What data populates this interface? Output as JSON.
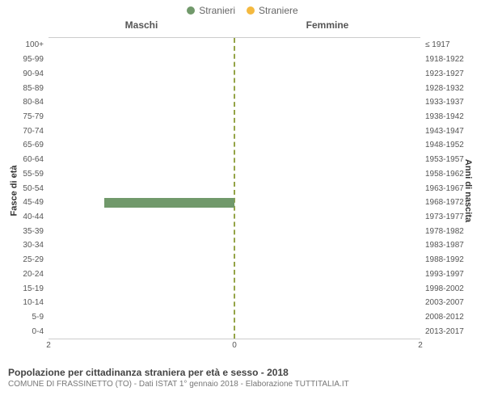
{
  "legend": {
    "male": {
      "label": "Stranieri",
      "color": "#71996b"
    },
    "female": {
      "label": "Straniere",
      "color": "#f4b93f"
    }
  },
  "chart": {
    "type": "population-pyramid",
    "left_header": "Maschi",
    "right_header": "Femmine",
    "y_left_title": "Fasce di età",
    "y_right_title": "Anni di nascita",
    "x_max": 2,
    "x_ticks_left": [
      "2"
    ],
    "x_ticks_center": [
      "0"
    ],
    "x_ticks_right": [
      "2"
    ],
    "center_line_color": "#94a346",
    "border_color": "#cccccc",
    "background_color": "#ffffff",
    "male_bar_color": "#71996b",
    "female_bar_color": "#f4b93f",
    "rows": [
      {
        "age": "100+",
        "year": "≤ 1917",
        "m": 0,
        "f": 0
      },
      {
        "age": "95-99",
        "year": "1918-1922",
        "m": 0,
        "f": 0
      },
      {
        "age": "90-94",
        "year": "1923-1927",
        "m": 0,
        "f": 0
      },
      {
        "age": "85-89",
        "year": "1928-1932",
        "m": 0,
        "f": 0
      },
      {
        "age": "80-84",
        "year": "1933-1937",
        "m": 0,
        "f": 0
      },
      {
        "age": "75-79",
        "year": "1938-1942",
        "m": 0,
        "f": 0
      },
      {
        "age": "70-74",
        "year": "1943-1947",
        "m": 0,
        "f": 0
      },
      {
        "age": "65-69",
        "year": "1948-1952",
        "m": 0,
        "f": 0
      },
      {
        "age": "60-64",
        "year": "1953-1957",
        "m": 0,
        "f": 0
      },
      {
        "age": "55-59",
        "year": "1958-1962",
        "m": 0,
        "f": 0
      },
      {
        "age": "50-54",
        "year": "1963-1967",
        "m": 0,
        "f": 0
      },
      {
        "age": "45-49",
        "year": "1968-1972",
        "m": 1.4,
        "f": 0
      },
      {
        "age": "40-44",
        "year": "1973-1977",
        "m": 0,
        "f": 0
      },
      {
        "age": "35-39",
        "year": "1978-1982",
        "m": 0,
        "f": 0
      },
      {
        "age": "30-34",
        "year": "1983-1987",
        "m": 0,
        "f": 0
      },
      {
        "age": "25-29",
        "year": "1988-1992",
        "m": 0,
        "f": 0
      },
      {
        "age": "20-24",
        "year": "1993-1997",
        "m": 0,
        "f": 0
      },
      {
        "age": "15-19",
        "year": "1998-2002",
        "m": 0,
        "f": 0
      },
      {
        "age": "10-14",
        "year": "2003-2007",
        "m": 0,
        "f": 0
      },
      {
        "age": "5-9",
        "year": "2008-2012",
        "m": 0,
        "f": 0
      },
      {
        "age": "0-4",
        "year": "2013-2017",
        "m": 0,
        "f": 0
      }
    ]
  },
  "footer": {
    "title": "Popolazione per cittadinanza straniera per età e sesso - 2018",
    "subtitle": "COMUNE DI FRASSINETTO (TO) - Dati ISTAT 1° gennaio 2018 - Elaborazione TUTTITALIA.IT"
  }
}
